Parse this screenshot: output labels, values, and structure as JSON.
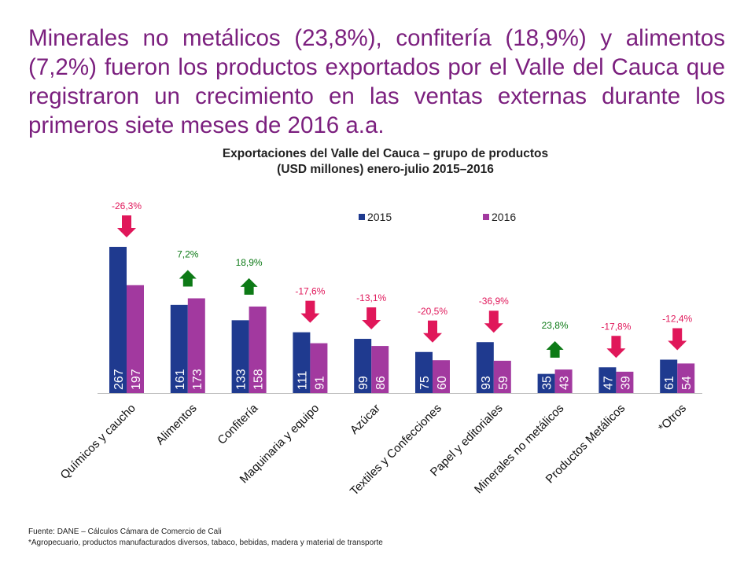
{
  "headline": "Minerales no metálicos (23,8%), confitería (18,9%) y alimentos (7,2%) fueron los productos exportados por el Valle del Cauca que registraron un crecimiento en las ventas externas durante los primeros siete meses de 2016 a.a.",
  "footer": {
    "source": "Fuente: DANE – Cálculos Cámara de Comercio de Cali",
    "note": "*Agropecuario, productos manufacturados diversos, tabaco, bebidas, madera y material de transporte"
  },
  "colors": {
    "s2015": "#1f3a8f",
    "s2016": "#a2399f",
    "down": "#e0175a",
    "up": "#0d7a16",
    "headline": "#7b1f7e"
  },
  "chart_data": {
    "type": "bar",
    "title_line1": "Exportaciones del Valle del Cauca – grupo de productos",
    "title_line2": "(USD millones) enero-julio 2015–2016",
    "categories": [
      "Químicos y caucho",
      "Alimentos",
      "Confitería",
      "Maquinaria y equipo",
      "Azúcar",
      "Textiles y Confecciones",
      "Papel y editoriales",
      "Minerales no metálicos",
      "Productos Metálicos",
      "*Otros"
    ],
    "series": [
      {
        "name": "2015",
        "values": [
          267,
          161,
          133,
          111,
          99,
          75,
          93,
          35,
          47,
          61
        ]
      },
      {
        "name": "2016",
        "values": [
          197,
          173,
          158,
          91,
          86,
          60,
          59,
          43,
          39,
          54
        ]
      }
    ],
    "changes": [
      "-26,3%",
      "7,2%",
      "18,9%",
      "-17,6%",
      "-13,1%",
      "-20,5%",
      "-36,9%",
      "23,8%",
      "-17,8%",
      "-12,4%"
    ],
    "change_direction": [
      "down",
      "up",
      "up",
      "down",
      "down",
      "down",
      "down",
      "up",
      "down",
      "down"
    ],
    "legend_position": "top-right",
    "ylim": [
      0,
      280
    ],
    "grid": false
  }
}
